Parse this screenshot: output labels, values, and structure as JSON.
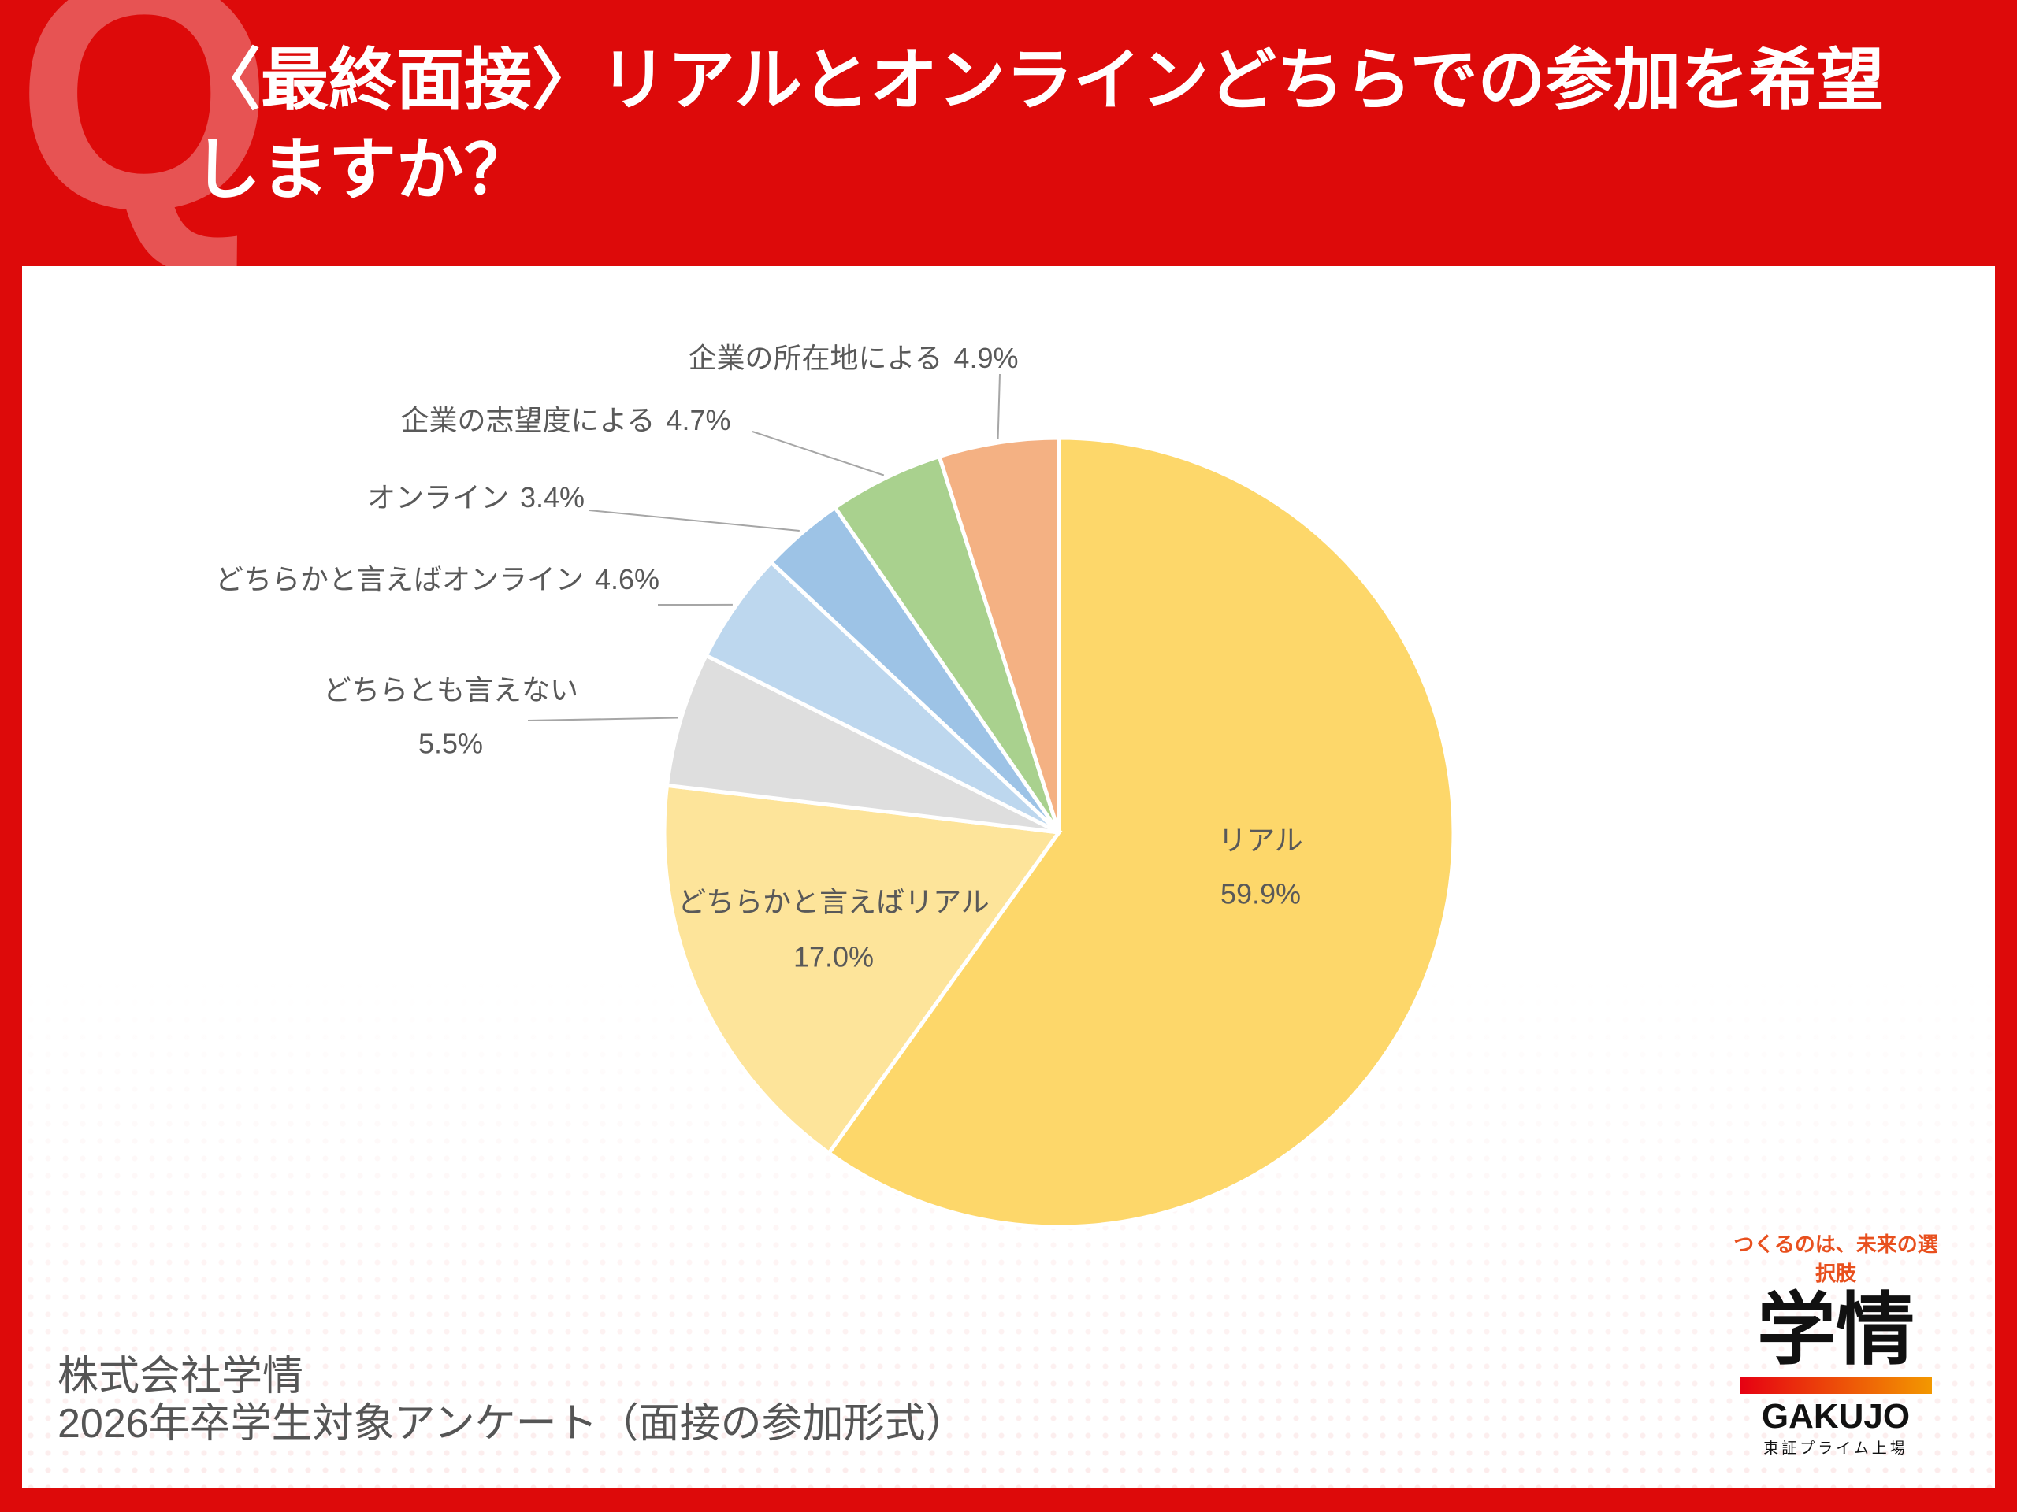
{
  "header": {
    "q_mark": "Q",
    "title": "〈最終面接〉リアルとオンラインどちらでの参加を希望しますか？"
  },
  "chart_data": {
    "type": "pie",
    "categories": [
      "リアル",
      "どちらかと言えばリアル",
      "どちらとも言えない",
      "どちらかと言えばオンライン",
      "オンライン",
      "企業の志望度による",
      "企業の所在地による"
    ],
    "values": [
      59.9,
      17.0,
      5.5,
      4.6,
      3.4,
      4.7,
      4.9
    ],
    "value_labels": [
      "59.9%",
      "17.0%",
      "5.5%",
      "4.6%",
      "3.4%",
      "4.7%",
      "4.9%"
    ],
    "colors": [
      "#fdd76a",
      "#fde49a",
      "#dedede",
      "#bdd7ee",
      "#9dc3e6",
      "#a9d18e",
      "#f4b183"
    ]
  },
  "footer": {
    "company": "株式会社学情",
    "survey": "2026年卒学生対象アンケート（面接の参加形式）"
  },
  "logo": {
    "tagline": "つくるのは、未来の選択肢",
    "name": "学情",
    "romaji": "GAKUJO",
    "listing": "東証プライム上場"
  }
}
